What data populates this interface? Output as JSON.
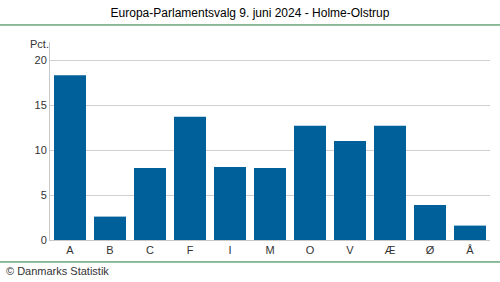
{
  "chart_data": {
    "type": "bar",
    "title": "Europa-Parlamentsvalg 9. juni 2024 - Holme-Olstrup",
    "ylabel": "Pct.",
    "source": "© Danmarks Statistik",
    "categories": [
      "A",
      "B",
      "C",
      "F",
      "I",
      "M",
      "O",
      "V",
      "Æ",
      "Ø",
      "Å"
    ],
    "values": [
      18.3,
      2.6,
      8.0,
      13.7,
      8.1,
      8.0,
      12.7,
      11.0,
      12.7,
      3.9,
      1.6
    ],
    "color": "#00609a",
    "ylim": [
      0,
      22
    ],
    "yticks": [
      0,
      5,
      10,
      15,
      20
    ],
    "grid": true
  }
}
